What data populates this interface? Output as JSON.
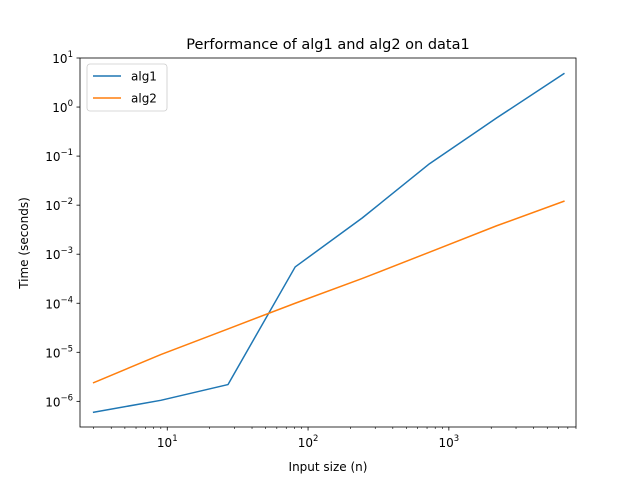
{
  "chart_data": {
    "type": "line",
    "title": "Performance of alg1 and alg2 on data1",
    "xlabel": "Input size (n)",
    "ylabel": "Time (seconds)",
    "xscale": "log",
    "yscale": "log",
    "xlim": [
      2.4,
      8000
    ],
    "ylim": [
      3e-07,
      10
    ],
    "grid": false,
    "legend": "top-left",
    "xticks": [
      {
        "value": 10,
        "base": "10",
        "exp": "1"
      },
      {
        "value": 100,
        "base": "10",
        "exp": "2"
      },
      {
        "value": 1000,
        "base": "10",
        "exp": "3"
      }
    ],
    "yticks": [
      {
        "value": 1e-06,
        "base": "10",
        "exp": "−6"
      },
      {
        "value": 1e-05,
        "base": "10",
        "exp": "−5"
      },
      {
        "value": 0.0001,
        "base": "10",
        "exp": "−4"
      },
      {
        "value": 0.001,
        "base": "10",
        "exp": "−3"
      },
      {
        "value": 0.01,
        "base": "10",
        "exp": "−2"
      },
      {
        "value": 0.1,
        "base": "10",
        "exp": "−1"
      },
      {
        "value": 1,
        "base": "10",
        "exp": "0"
      },
      {
        "value": 10,
        "base": "10",
        "exp": "1"
      }
    ],
    "series": [
      {
        "name": "alg1",
        "color": "#1f77b4",
        "x": [
          3,
          9,
          27,
          81,
          243,
          729,
          2187,
          6561
        ],
        "y": [
          6e-07,
          1.05e-06,
          2.2e-06,
          0.00055,
          0.0055,
          0.07,
          0.6,
          4.8
        ]
      },
      {
        "name": "alg2",
        "color": "#ff7f0e",
        "x": [
          3,
          9,
          27,
          81,
          243,
          729,
          2187,
          6561
        ],
        "y": [
          2.4e-06,
          9e-06,
          3e-05,
          0.0001,
          0.00032,
          0.0011,
          0.0038,
          0.012
        ]
      }
    ]
  }
}
